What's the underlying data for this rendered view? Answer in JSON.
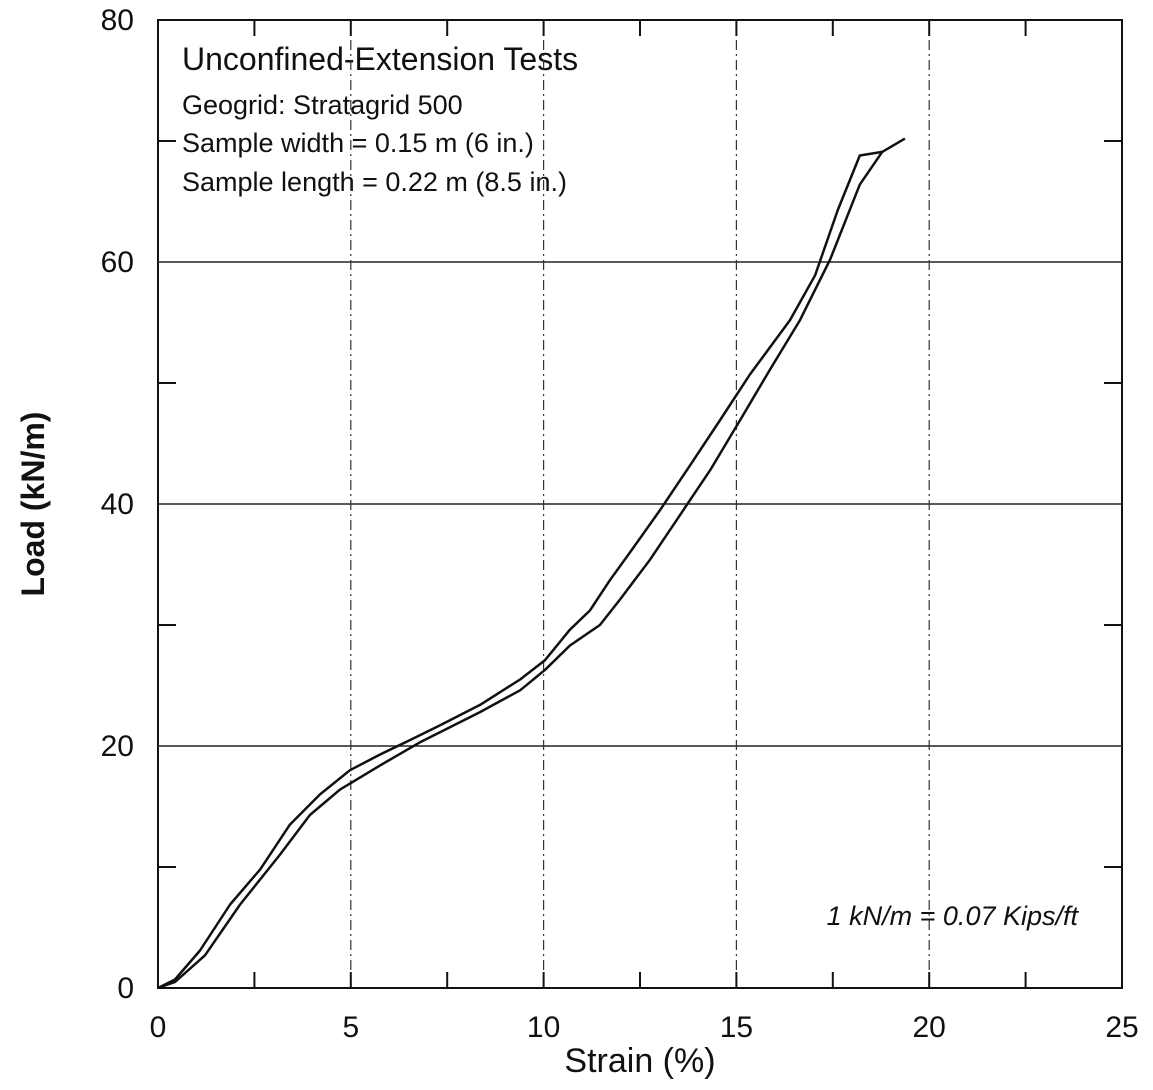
{
  "chart_data": {
    "type": "line",
    "title": "Unconfined-Extension Tests",
    "subtitle_lines": [
      "Geogrid: Stratagrid 500",
      "Sample width =  0.15 m (6 in.)",
      "Sample length = 0.22 m (8.5 in.)"
    ],
    "annotation": "1 kN/m = 0.07 Kips/ft",
    "x_label": "Strain (%)",
    "y_label": "Load (kN/m)",
    "xlim": [
      0,
      25
    ],
    "ylim": [
      0,
      80
    ],
    "xticks": [
      0,
      5,
      10,
      15,
      20,
      25
    ],
    "yticks": [
      0,
      20,
      40,
      60,
      80
    ],
    "xminorticks": [
      2.5,
      7.5,
      12.5,
      17.5,
      22.5
    ],
    "yminorticks": [
      10,
      30,
      50,
      70
    ],
    "grid": true,
    "series": [
      {
        "color": "#111111",
        "x": [
          0,
          0.44,
          1.09,
          1.87,
          2.65,
          3.42,
          4.2,
          4.98,
          5.76,
          6.54,
          7.31,
          8.35,
          9.39,
          10.04,
          10.68,
          11.2,
          11.72,
          12.24,
          13.02,
          13.8,
          14.57,
          15.35,
          16.39,
          17.04,
          17.63,
          18.2,
          18.78
        ],
        "values": [
          0,
          0.7,
          3.1,
          6.9,
          9.8,
          13.5,
          16.0,
          18.0,
          19.3,
          20.5,
          21.7,
          23.4,
          25.5,
          27.1,
          29.6,
          31.2,
          33.7,
          36.0,
          39.5,
          43.2,
          46.9,
          50.7,
          55.2,
          58.9,
          64.3,
          68.8,
          69.1
        ]
      },
      {
        "color": "#111111",
        "x": [
          0,
          0.44,
          1.22,
          2.13,
          3.16,
          3.94,
          4.72,
          5.76,
          6.79,
          8.35,
          9.39,
          10.04,
          10.68,
          11.46,
          11.98,
          12.76,
          13.54,
          14.32,
          15.09,
          15.87,
          16.65,
          17.43,
          18.2,
          18.78,
          19.37
        ],
        "values": [
          0,
          0.5,
          2.7,
          6.9,
          11.0,
          14.3,
          16.4,
          18.4,
          20.3,
          22.8,
          24.6,
          26.3,
          28.3,
          30.0,
          32.1,
          35.4,
          39.1,
          42.8,
          46.9,
          51.1,
          55.2,
          60.2,
          66.4,
          69.1,
          70.2
        ]
      }
    ]
  }
}
